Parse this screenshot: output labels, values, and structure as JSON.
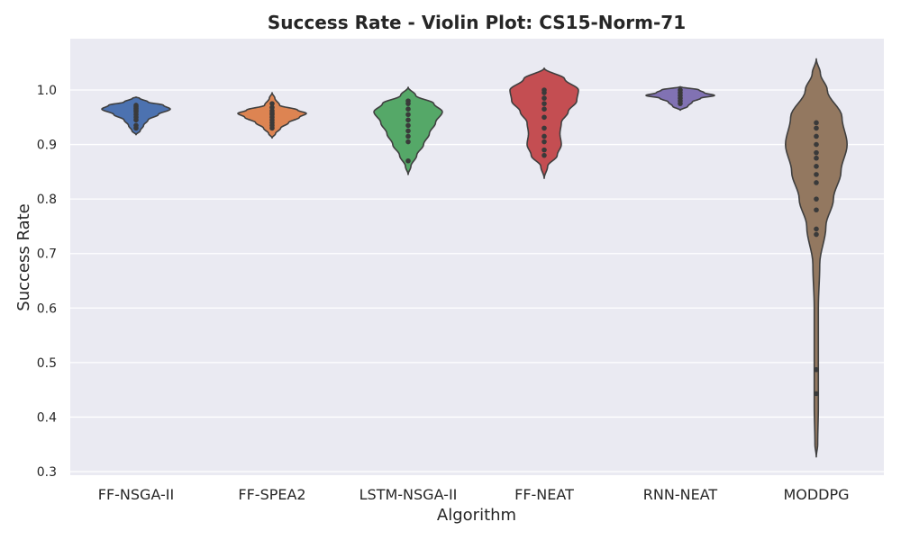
{
  "chart_data": {
    "type": "violin",
    "title": "Success Rate - Violin Plot: CS15-Norm-71",
    "xlabel": "Algorithm",
    "ylabel": "Success Rate",
    "ylim": [
      0.29,
      1.1
    ],
    "yticks": [
      0.3,
      0.4,
      0.5,
      0.6,
      0.7,
      0.8,
      0.9,
      1.0
    ],
    "ytick_labels": [
      "0.3",
      "0.4",
      "0.5",
      "0.6",
      "0.7",
      "0.8",
      "0.9",
      "1.0"
    ],
    "grid": true,
    "background": "#EAEAF2",
    "categories": [
      "FF-NSGA-II",
      "FF-SPEA2",
      "LSTM-NSGA-II",
      "FF-NEAT",
      "RNN-NEAT",
      "MODDPG"
    ],
    "series": [
      {
        "name": "FF-NSGA-II",
        "color": "#4C72B0",
        "points": [
          0.93,
          0.935,
          0.945,
          0.95,
          0.955,
          0.96,
          0.963,
          0.966,
          0.969,
          0.972
        ],
        "profile": [
          [
            0.918,
            0.0
          ],
          [
            0.925,
            0.12
          ],
          [
            0.935,
            0.22
          ],
          [
            0.945,
            0.35
          ],
          [
            0.955,
            0.65
          ],
          [
            0.965,
            1.0
          ],
          [
            0.972,
            0.8
          ],
          [
            0.978,
            0.35
          ],
          [
            0.985,
            0.1
          ],
          [
            0.987,
            0.0
          ]
        ]
      },
      {
        "name": "FF-SPEA2",
        "color": "#DD8452",
        "points": [
          0.93,
          0.935,
          0.94,
          0.945,
          0.95,
          0.955,
          0.958,
          0.962,
          0.968,
          0.975
        ],
        "profile": [
          [
            0.912,
            0.0
          ],
          [
            0.92,
            0.1
          ],
          [
            0.93,
            0.25
          ],
          [
            0.94,
            0.48
          ],
          [
            0.95,
            0.8
          ],
          [
            0.957,
            1.0
          ],
          [
            0.963,
            0.75
          ],
          [
            0.972,
            0.22
          ],
          [
            0.985,
            0.08
          ],
          [
            0.995,
            0.0
          ]
        ]
      },
      {
        "name": "LSTM-NSGA-II",
        "color": "#55A868",
        "points": [
          0.87,
          0.905,
          0.915,
          0.925,
          0.935,
          0.945,
          0.955,
          0.965,
          0.975,
          0.98
        ],
        "profile": [
          [
            0.845,
            0.0
          ],
          [
            0.86,
            0.08
          ],
          [
            0.88,
            0.25
          ],
          [
            0.9,
            0.45
          ],
          [
            0.92,
            0.62
          ],
          [
            0.94,
            0.8
          ],
          [
            0.96,
            1.0
          ],
          [
            0.975,
            0.75
          ],
          [
            0.99,
            0.22
          ],
          [
            1.005,
            0.0
          ]
        ]
      },
      {
        "name": "FF-NEAT",
        "color": "#C44E52",
        "points": [
          0.88,
          0.89,
          0.905,
          0.915,
          0.93,
          0.95,
          0.965,
          0.975,
          0.985,
          0.995,
          1.0
        ],
        "profile": [
          [
            0.838,
            0.0
          ],
          [
            0.86,
            0.1
          ],
          [
            0.88,
            0.38
          ],
          [
            0.9,
            0.5
          ],
          [
            0.92,
            0.46
          ],
          [
            0.94,
            0.5
          ],
          [
            0.96,
            0.7
          ],
          [
            0.98,
            0.95
          ],
          [
            1.0,
            1.0
          ],
          [
            1.02,
            0.6
          ],
          [
            1.04,
            0.0
          ]
        ]
      },
      {
        "name": "RNN-NEAT",
        "color": "#8172B3",
        "points": [
          0.975,
          0.98,
          0.985,
          0.99,
          0.995,
          1.0
        ],
        "profile": [
          [
            0.963,
            0.0
          ],
          [
            0.97,
            0.22
          ],
          [
            0.978,
            0.35
          ],
          [
            0.985,
            0.6
          ],
          [
            0.99,
            1.0
          ],
          [
            0.995,
            0.7
          ],
          [
            1.0,
            0.55
          ],
          [
            1.006,
            0.0
          ]
        ]
      },
      {
        "name": "MODDPG",
        "color": "#937860",
        "points": [
          0.443,
          0.487,
          0.735,
          0.745,
          0.78,
          0.8,
          0.83,
          0.845,
          0.86,
          0.875,
          0.885,
          0.9,
          0.915,
          0.93,
          0.94
        ],
        "profile": [
          [
            0.327,
            0.0
          ],
          [
            0.35,
            0.04
          ],
          [
            0.42,
            0.06
          ],
          [
            0.5,
            0.06
          ],
          [
            0.6,
            0.06
          ],
          [
            0.68,
            0.1
          ],
          [
            0.75,
            0.28
          ],
          [
            0.8,
            0.5
          ],
          [
            0.85,
            0.72
          ],
          [
            0.9,
            0.9
          ],
          [
            0.95,
            0.75
          ],
          [
            1.0,
            0.32
          ],
          [
            1.03,
            0.12
          ],
          [
            1.057,
            0.0
          ]
        ]
      }
    ]
  }
}
